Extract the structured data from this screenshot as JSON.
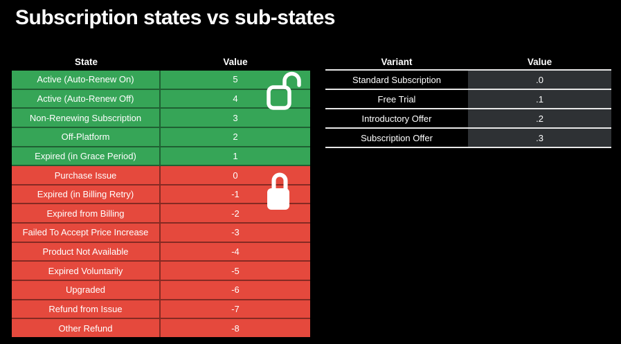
{
  "title": "Subscription states vs sub-states",
  "states_table": {
    "header": {
      "col1": "State",
      "col2": "Value"
    },
    "rows": [
      {
        "label": "Active (Auto-Renew On)",
        "value": "5",
        "tone": "green"
      },
      {
        "label": "Active (Auto-Renew Off)",
        "value": "4",
        "tone": "green"
      },
      {
        "label": "Non-Renewing Subscription",
        "value": "3",
        "tone": "green"
      },
      {
        "label": "Off-Platform",
        "value": "2",
        "tone": "green"
      },
      {
        "label": "Expired (in Grace Period)",
        "value": "1",
        "tone": "green"
      },
      {
        "label": "Purchase Issue",
        "value": "0",
        "tone": "red"
      },
      {
        "label": "Expired (in Billing Retry)",
        "value": "-1",
        "tone": "red"
      },
      {
        "label": "Expired from Billing",
        "value": "-2",
        "tone": "red"
      },
      {
        "label": "Failed To Accept Price Increase",
        "value": "-3",
        "tone": "red"
      },
      {
        "label": "Product Not Available",
        "value": "-4",
        "tone": "red"
      },
      {
        "label": "Expired Voluntarily",
        "value": "-5",
        "tone": "red"
      },
      {
        "label": "Upgraded",
        "value": "-6",
        "tone": "red"
      },
      {
        "label": "Refund from Issue",
        "value": "-7",
        "tone": "red"
      },
      {
        "label": "Other Refund",
        "value": "-8",
        "tone": "red"
      }
    ]
  },
  "variants_table": {
    "header": {
      "col1": "Variant",
      "col2": "Value"
    },
    "rows": [
      {
        "label": "Standard Subscription",
        "value": ".0"
      },
      {
        "label": "Free Trial",
        "value": ".1"
      },
      {
        "label": "Introductory Offer",
        "value": ".2"
      },
      {
        "label": "Subscription Offer",
        "value": ".3"
      }
    ]
  },
  "icons": {
    "positive_section": "unlock-icon",
    "negative_section": "lock-icon"
  },
  "colors": {
    "background": "#000000",
    "positive_row_green": "#36a557",
    "negative_row_red": "#e5493d",
    "variant_value_cell": "#2e3134",
    "text": "#ffffff",
    "variant_divider": "#e8e8e8"
  },
  "chart_data": [
    {
      "type": "table",
      "columns": [
        "State",
        "Value"
      ],
      "rows": [
        [
          "Active (Auto-Renew On)",
          5
        ],
        [
          "Active (Auto-Renew Off)",
          4
        ],
        [
          "Non-Renewing Subscription",
          3
        ],
        [
          "Off-Platform",
          2
        ],
        [
          "Expired (in Grace Period)",
          1
        ],
        [
          "Purchase Issue",
          0
        ],
        [
          "Expired (in Billing Retry)",
          -1
        ],
        [
          "Expired from Billing",
          -2
        ],
        [
          "Failed To Accept Price Increase",
          -3
        ],
        [
          "Product Not Available",
          -4
        ],
        [
          "Expired Voluntarily",
          -5
        ],
        [
          "Upgraded",
          -6
        ],
        [
          "Refund from Issue",
          -7
        ],
        [
          "Other Refund",
          -8
        ]
      ],
      "notes": "Rows with values 5 through 1 are green (unlocked icon); rows 0 through -8 are red (locked icon)"
    },
    {
      "type": "table",
      "columns": [
        "Variant",
        "Value"
      ],
      "rows": [
        [
          "Standard Subscription",
          ".0"
        ],
        [
          "Free Trial",
          ".1"
        ],
        [
          "Introductory Offer",
          ".2"
        ],
        [
          "Subscription Offer",
          ".3"
        ]
      ]
    }
  ]
}
